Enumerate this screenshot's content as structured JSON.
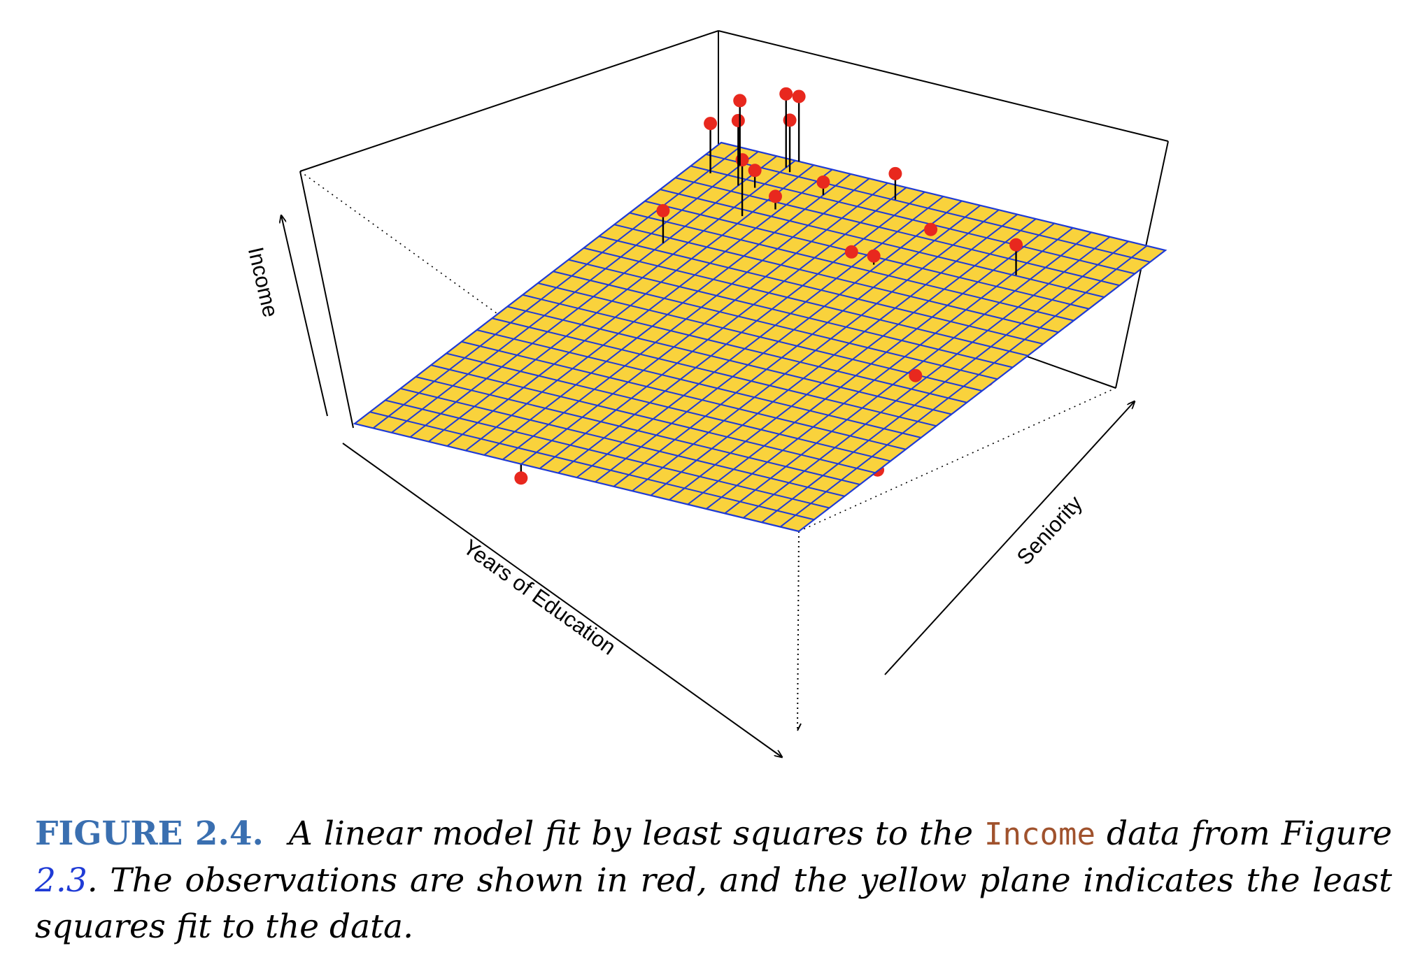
{
  "chart_data": {
    "type": "scatter",
    "subtype": "3d-regression-plane",
    "xlabel": "Years of Education",
    "ylabel": "Seniority",
    "zlabel": "Income",
    "plane_color": "#f9d23c",
    "plane_grid_color": "#1f3bd6",
    "point_color": "#e8281e",
    "grid": true,
    "x": [
      10.2,
      10.9,
      11.6,
      14.3,
      12.4,
      13.5,
      15.6,
      16.8,
      13.0,
      17.6,
      18.0,
      11.0,
      13.8,
      15.2,
      17.2,
      16.4,
      19.1,
      18.5,
      19.6,
      20.5,
      17.9,
      19.6,
      20.5,
      19.9,
      19.8,
      21.0,
      20.1,
      20.0,
      21.4,
      16.9
    ],
    "y": [
      47,
      26,
      96,
      85,
      167,
      105,
      154,
      85,
      20,
      60,
      10,
      123,
      173,
      177,
      182,
      158,
      171,
      185,
      165,
      138,
      130,
      163,
      179,
      200,
      193,
      190,
      180,
      195,
      182,
      192
    ],
    "z": [
      31,
      33,
      48,
      29,
      72,
      40,
      63,
      56,
      22,
      57,
      36,
      34,
      53,
      62,
      60,
      58,
      70,
      70,
      58,
      78,
      42,
      90,
      96,
      99,
      92,
      100,
      74,
      101,
      91,
      76
    ],
    "fitted_z": [
      34,
      36,
      45,
      48,
      58,
      50,
      59,
      58,
      35,
      58,
      51,
      48,
      57,
      59,
      61,
      58,
      64,
      64,
      63,
      63,
      58,
      64,
      66,
      69,
      68,
      70,
      66,
      67,
      68,
      64
    ]
  },
  "caption": {
    "label": "FIGURE 2.4.",
    "text_1": "A linear model fit by least squares to the",
    "code": "Income",
    "text_2": "data from Figure",
    "ref": "2.3",
    "text_3": ". The observations are shown in red, and the yellow plane indicates the least squares fit to the data."
  }
}
